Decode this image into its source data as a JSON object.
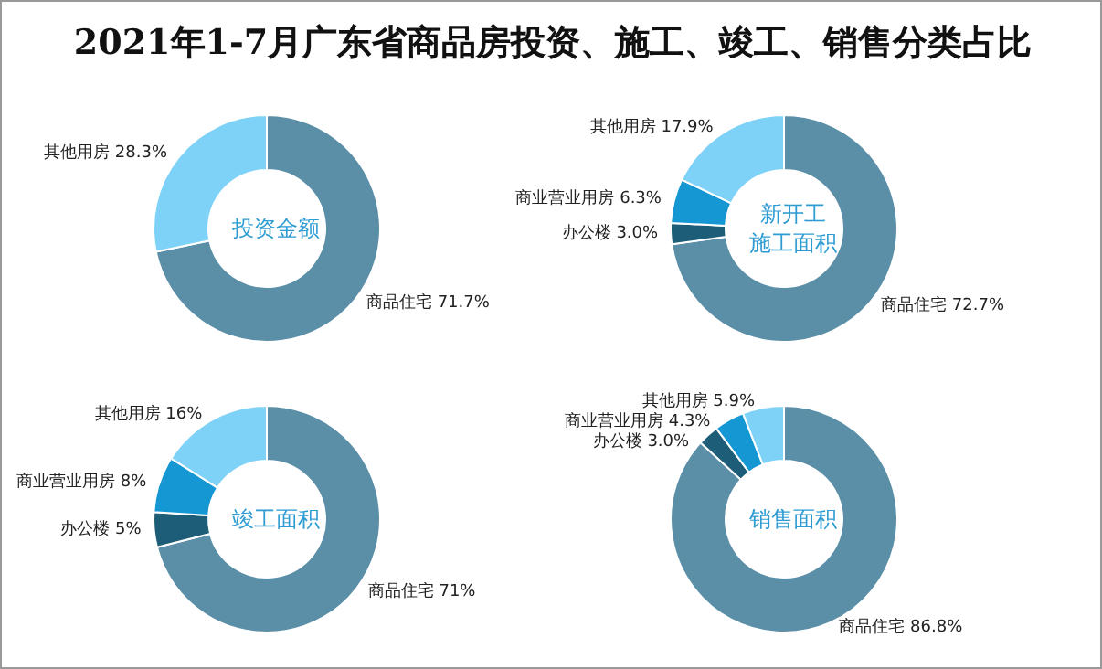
{
  "chart_data": [
    {
      "type": "other",
      "title": "2021年1-7月广东省商品房投资、施工、竣工、销售分类占比"
    },
    {
      "type": "donut",
      "title": "投资金额",
      "categories": [
        "商品住宅",
        "其他用房"
      ],
      "values": [
        71.7,
        28.3
      ],
      "value_labels": [
        "71.7%",
        "28.3%"
      ],
      "colors": [
        "#5b8fa8",
        "#7fd2f7"
      ],
      "legend": false
    },
    {
      "type": "donut",
      "title": "新开工施工面积",
      "categories": [
        "商品住宅",
        "办公楼",
        "商业营业用房",
        "其他用房"
      ],
      "values": [
        72.7,
        3.0,
        6.3,
        17.9
      ],
      "value_labels": [
        "72.7%",
        "3.0%",
        "6.3%",
        "17.9%"
      ],
      "colors": [
        "#5b8fa8",
        "#1d5d78",
        "#1597d4",
        "#7fd2f7"
      ],
      "legend": false
    },
    {
      "type": "donut",
      "title": "竣工面积",
      "categories": [
        "商品住宅",
        "办公楼",
        "商业营业用房",
        "其他用房"
      ],
      "values": [
        71,
        5,
        8,
        16
      ],
      "value_labels": [
        "71%",
        "5%",
        "8%",
        "16%"
      ],
      "colors": [
        "#5b8fa8",
        "#1d5d78",
        "#1597d4",
        "#7fd2f7"
      ],
      "legend": false
    },
    {
      "type": "donut",
      "title": "销售面积",
      "categories": [
        "商品住宅",
        "办公楼",
        "商业营业用房",
        "其他用房"
      ],
      "values": [
        86.8,
        3.0,
        4.3,
        5.9
      ],
      "value_labels": [
        "86.8%",
        "3.0%",
        "4.3%",
        "5.9%"
      ],
      "colors": [
        "#5b8fa8",
        "#1d5d78",
        "#1597d4",
        "#7fd2f7"
      ],
      "legend": false
    }
  ]
}
